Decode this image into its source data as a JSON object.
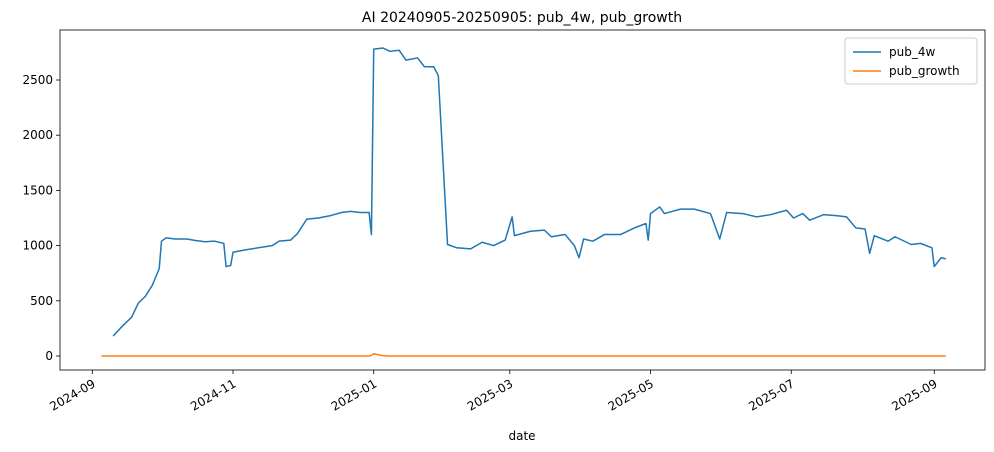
{
  "chart_data": {
    "type": "line",
    "title": "AI 20240905-20250905: pub_4w, pub_growth",
    "x_label": "date",
    "x": [
      "2024-09-05",
      "2024-09-10",
      "2024-09-14",
      "2024-09-18",
      "2024-09-21",
      "2024-09-24",
      "2024-09-27",
      "2024-09-30",
      "2024-10-01",
      "2024-10-03",
      "2024-10-07",
      "2024-10-12",
      "2024-10-16",
      "2024-10-20",
      "2024-10-24",
      "2024-10-28",
      "2024-10-29",
      "2024-10-31",
      "2024-11-01",
      "2024-11-06",
      "2024-11-12",
      "2024-11-18",
      "2024-11-21",
      "2024-11-26",
      "2024-11-29",
      "2024-12-03",
      "2024-12-08",
      "2024-12-13",
      "2024-12-18",
      "2024-12-22",
      "2024-12-26",
      "2024-12-30",
      "2024-12-31",
      "2025-01-01",
      "2025-01-05",
      "2025-01-08",
      "2025-01-12",
      "2025-01-15",
      "2025-01-20",
      "2025-01-23",
      "2025-01-27",
      "2025-01-29",
      "2025-02-02",
      "2025-02-06",
      "2025-02-12",
      "2025-02-17",
      "2025-02-22",
      "2025-02-27",
      "2025-03-02",
      "2025-03-03",
      "2025-03-10",
      "2025-03-16",
      "2025-03-19",
      "2025-03-25",
      "2025-03-29",
      "2025-03-31",
      "2025-04-02",
      "2025-04-06",
      "2025-04-11",
      "2025-04-18",
      "2025-04-24",
      "2025-04-29",
      "2025-04-30",
      "2025-05-01",
      "2025-05-05",
      "2025-05-07",
      "2025-05-14",
      "2025-05-20",
      "2025-05-27",
      "2025-05-31",
      "2025-06-03",
      "2025-06-10",
      "2025-06-16",
      "2025-06-22",
      "2025-06-29",
      "2025-07-02",
      "2025-07-06",
      "2025-07-09",
      "2025-07-15",
      "2025-07-21",
      "2025-07-25",
      "2025-07-29",
      "2025-08-02",
      "2025-08-04",
      "2025-08-06",
      "2025-08-12",
      "2025-08-15",
      "2025-08-22",
      "2025-08-26",
      "2025-08-31",
      "2025-09-01",
      "2025-09-04",
      "2025-09-06"
    ],
    "series": [
      {
        "name": "pub_4w",
        "color": "#1f77b4",
        "values": [
          null,
          180,
          270,
          350,
          480,
          540,
          640,
          790,
          1040,
          1070,
          1060,
          1060,
          1045,
          1035,
          1040,
          1020,
          810,
          820,
          940,
          960,
          980,
          1000,
          1040,
          1050,
          1110,
          1240,
          1250,
          1270,
          1300,
          1310,
          1300,
          1300,
          1100,
          2780,
          2790,
          2760,
          2770,
          2680,
          2700,
          2620,
          2620,
          2540,
          1010,
          980,
          970,
          1030,
          1000,
          1050,
          1260,
          1090,
          1130,
          1140,
          1080,
          1100,
          1000,
          890,
          1060,
          1040,
          1100,
          1100,
          1160,
          1200,
          1050,
          1290,
          1350,
          1290,
          1330,
          1330,
          1290,
          1060,
          1300,
          1290,
          1260,
          1280,
          1320,
          1250,
          1290,
          1230,
          1280,
          1270,
          1260,
          1160,
          1150,
          930,
          1090,
          1040,
          1080,
          1010,
          1020,
          980,
          810,
          890,
          880
        ]
      },
      {
        "name": "pub_growth",
        "color": "#ff7f0e",
        "values": [
          0,
          0,
          0,
          0,
          0,
          0,
          0,
          0,
          0,
          0,
          0,
          0,
          0,
          0,
          0,
          0,
          0,
          0,
          0,
          0,
          0,
          0,
          0,
          0,
          0,
          0,
          0,
          0,
          0,
          0,
          0,
          0,
          5,
          20,
          2,
          0,
          0,
          0,
          0,
          0,
          0,
          0,
          0,
          0,
          0,
          0,
          0,
          0,
          0,
          0,
          0,
          0,
          0,
          0,
          0,
          0,
          0,
          0,
          0,
          0,
          0,
          0,
          0,
          0,
          0,
          0,
          0,
          0,
          0,
          0,
          0,
          0,
          0,
          0,
          0,
          0,
          0,
          0,
          0,
          0,
          0,
          0,
          0,
          0,
          0,
          0,
          0,
          0,
          0,
          0,
          0,
          0,
          0
        ]
      }
    ],
    "xlim": [
      "2024-08-18",
      "2025-09-23"
    ],
    "xticks": [
      {
        "value": "2024-09-01",
        "label": "2024-09"
      },
      {
        "value": "2024-11-01",
        "label": "2024-11"
      },
      {
        "value": "2025-01-01",
        "label": "2025-01"
      },
      {
        "value": "2025-03-01",
        "label": "2025-03"
      },
      {
        "value": "2025-05-01",
        "label": "2025-05"
      },
      {
        "value": "2025-07-01",
        "label": "2025-07"
      },
      {
        "value": "2025-09-01",
        "label": "2025-09"
      }
    ],
    "ylim": [
      -127,
      2953
    ],
    "yticks": [
      0,
      500,
      1000,
      1500,
      2000,
      2500
    ],
    "legend": "upper right"
  }
}
